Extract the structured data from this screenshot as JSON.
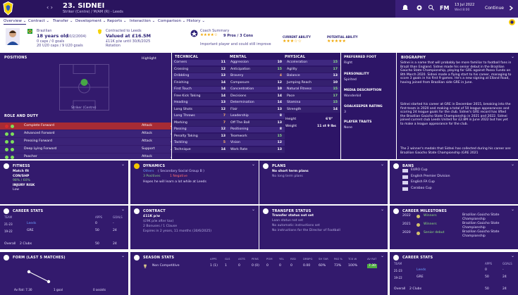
{
  "header": {
    "player_title": "23. SIDNEI",
    "player_subtitle": "Striker (Centre) / M/AM (R) - Leeds",
    "date": "13 Jul 2022",
    "day": "Wed 8:00",
    "fm_label": "FM",
    "continue_label": "Continue"
  },
  "nav": [
    {
      "label": "Overview ⌄",
      "active": true
    },
    {
      "label": "Contract ⌄"
    },
    {
      "label": "Transfer ⌄"
    },
    {
      "label": "Development ⌄"
    },
    {
      "label": "Reports ⌄"
    },
    {
      "label": "Interaction ⌄"
    },
    {
      "label": "Comparison ⌄"
    },
    {
      "label": "History ⌄"
    }
  ],
  "profile": {
    "nationality": "Brazilian",
    "age": "18 years old",
    "dob": "(10/2/2004)",
    "caps": "0 caps / 0 goals",
    "u20_caps": "20 U20 caps / 9 U20 goals",
    "contract_title": "Contracted to Leeds",
    "value": "Valued at £16.5M",
    "wage": "£11K p/w until 30/6/2025",
    "squad_status": "Rotation",
    "coach_title": "Coach Summary",
    "coach_summary": "9 Pros / 3 Cons",
    "coach_comment": "Important player and could still improve",
    "current_ability_label": "CURRENT ABILITY",
    "potential_ability_label": "POTENTIAL ABILITY",
    "current_stars": 2.5,
    "potential_stars": 4.5
  },
  "positions": {
    "title": "POSITIONS",
    "highlight_label": "Highlight",
    "position_label": "Striker (Centre)"
  },
  "roles": {
    "title": "ROLE AND DUTY",
    "items": [
      {
        "name": "Complete Forward",
        "duty": "Attack",
        "dots": [
          "#d72b2b",
          "#7ddf5b"
        ],
        "selected": true
      },
      {
        "name": "Advanced Forward",
        "duty": "Attack",
        "dots": [
          "#7ddf5b",
          "#7ddf5b"
        ]
      },
      {
        "name": "Pressing Forward",
        "duty": "Attack",
        "dots": [
          "#7ddf5b",
          "#7ddf5b"
        ]
      },
      {
        "name": "Deep Lying Forward",
        "duty": "Support",
        "dots": [
          "#7ddf5b",
          "#7ddf5b"
        ]
      },
      {
        "name": "Poacher",
        "duty": "Attack",
        "dots": [
          "#7ddf5b",
          "#7ddf5b"
        ]
      }
    ]
  },
  "attributes": {
    "technical_title": "TECHNICAL",
    "mental_title": "MENTAL",
    "physical_title": "PHYSICAL",
    "technical": [
      [
        "Corners",
        "11"
      ],
      [
        "Crossing",
        "12"
      ],
      [
        "Dribbling",
        "13"
      ],
      [
        "Finishing",
        "14"
      ],
      [
        "First Touch",
        "14"
      ],
      [
        "Free Kick Taking",
        "14"
      ],
      [
        "Heading",
        "13"
      ],
      [
        "Long Shots",
        "12"
      ],
      [
        "Long Throws",
        "7"
      ],
      [
        "Marking",
        "7"
      ],
      [
        "Passing",
        "12"
      ],
      [
        "Penalty Taking",
        "13"
      ],
      [
        "Tackling",
        "5"
      ],
      [
        "Technique",
        "14"
      ]
    ],
    "mental": [
      [
        "Aggression",
        "10"
      ],
      [
        "Anticipation",
        "15"
      ],
      [
        "Bravery",
        "4"
      ],
      [
        "Composure",
        "12"
      ],
      [
        "Concentration",
        "10"
      ],
      [
        "Decisions",
        "14"
      ],
      [
        "Determination",
        "14"
      ],
      [
        "Flair",
        "13"
      ],
      [
        "Leadership",
        "8"
      ],
      [
        "Off The Ball",
        "13"
      ],
      [
        "Positioning",
        "8"
      ],
      [
        "Teamwork",
        "15"
      ],
      [
        "Vision",
        "12"
      ],
      [
        "Work Rate",
        "13"
      ]
    ],
    "physical": [
      [
        "Acceleration",
        "15"
      ],
      [
        "Agility",
        "17"
      ],
      [
        "Balance",
        "13"
      ],
      [
        "Jumping Reach",
        "10"
      ],
      [
        "Natural Fitness",
        "15"
      ],
      [
        "Pace",
        "17"
      ],
      [
        "Stamina",
        "15"
      ],
      [
        "Strength",
        "14"
      ]
    ],
    "height_label": "Height",
    "height_value": "6'0\"",
    "weight_label": "Weight",
    "weight_value": "11 st 9 lbs"
  },
  "side": {
    "preferred_foot_label": "PREFERRED FOOT",
    "preferred_foot": "Right",
    "personality_label": "PERSONALITY",
    "personality": "Spirited",
    "media_label": "MEDIA DESCRIPTION",
    "media": "Wonderkid",
    "gk_label": "GOALKEEPER RATING",
    "gk_value": "3",
    "traits_label": "PLAYER TRAITS",
    "traits": "None"
  },
  "biography": {
    "title": "BIOGRAPHY",
    "para1": "Sidnei is a name that will probably be more familiar to football fans in Brazil than England. Sidnei made his senior debut in the Brazilian Gaúcho State Championship, playing for GRE against Passo Fundo on 8th March 2020. Sidnei made a flying start to his career, managing to score 3 goals in his first 9 games. He's a new signing at Elland Road, having joined from Brazilian side GRE in June.",
    "para2": "Sidnei started his career at GRE in December 2015, breaking into the first-team in 2020 and making a total of 50 league appearances and scoring 24 league goals for the club. Sidnei's GRE record has lifted the Brazilian Gaúcho State Championship in 2021 and 2022. Sidnei joined current club Leeds United for £2.8M in June 2022 but has yet to make a league appearance for the club.",
    "para3": "The 2 winner's medals that Sidnei has collected during his career are: Brazilian Gaúcho State Championship (GRE 2021"
  },
  "fitness": {
    "title": "FITNESS",
    "status": "Match fit",
    "condition_label": "CON/SHP",
    "condition": "98% / 60%",
    "injury_label": "INJURY RISK",
    "injury": "Low"
  },
  "dynamics": {
    "title": "DYNAMICS",
    "group": "Others",
    "group_sub": "( Secondary Social Group B )",
    "positive": "3 Positives",
    "negative": "1 Negative",
    "hope": "Hopes he will learn a lot while at Leeds"
  },
  "plans": {
    "title": "PLANS",
    "headline": "No short term plans",
    "sub": "No long term plans"
  },
  "bans": {
    "title": "BANS",
    "items": [
      "EURO Cup",
      "English Premier Division",
      "English FA Cup",
      "Carabao Cup"
    ]
  },
  "career_stats": {
    "title": "CAREER STATS",
    "team_label": "TEAM",
    "apps_label": "APPS",
    "goals_label": "GOALS",
    "rows": [
      [
        "21-23",
        "Leeds",
        "0",
        "-"
      ],
      [
        "19-22",
        "GRE",
        "50",
        "24"
      ]
    ],
    "overall_label": "Overall",
    "overall_clubs": "2 Clubs",
    "overall_apps": "50",
    "overall_goals": "24"
  },
  "contract": {
    "title": "CONTRACT",
    "wage": "£11K p/w",
    "wage_note": "(£9K p/w after tax)",
    "bonus": "2 Bonuses / 1 Clause",
    "expiry": "Expires in 2 years, 11 months (30/6/2025)"
  },
  "transfer": {
    "title": "TRANSFER STATUS",
    "status": "Transfer status not set",
    "loan": "Loan status not set",
    "instruction1": "No automatic instructions set",
    "instruction2": "No instructions for the Director of Football"
  },
  "milestones": {
    "title": "CAREER MILESTONES",
    "rows": [
      [
        "2022",
        "Winners",
        "Brazilian Gaúcho State Championship"
      ],
      [
        "2021",
        "Winners",
        "Brazilian Gaúcho State Championship"
      ],
      [
        "2020",
        "Senior debut",
        "Brazilian Gaúcho State Championship"
      ]
    ]
  },
  "form": {
    "title": "FORM (LAST 5 MATCHES)",
    "avg_label": "Av Rat: 7.30",
    "goals_label": "1 goal",
    "assists_label": "0 assists"
  },
  "season_stats": {
    "title": "SEASON STATS",
    "headers": [
      "APPS",
      "GLS",
      "ASTS",
      "PENS",
      "POM",
      "YEL",
      "RED",
      "DRBPG",
      "SH TAR",
      "PAS %",
      "TCK W",
      "AV RAT"
    ],
    "row_label": "Non Competitive",
    "values": [
      "1 (1)",
      "1",
      "0",
      "0 (0)",
      "0",
      "0",
      "0",
      "0.00",
      "60%",
      "73%",
      "100%",
      "7.30"
    ]
  },
  "career_stats_2": {
    "title": "CAREER STATS",
    "team_label": "TEAM",
    "apps_label": "APPS",
    "goals_label": "GOALS",
    "rows": [
      [
        "21-23",
        "Leeds",
        "0",
        "-"
      ],
      [
        "19-22",
        "GRE",
        "50",
        "24"
      ]
    ],
    "overall_label": "Overall",
    "overall_clubs": "2 Clubs",
    "overall_apps": "50",
    "overall_goals": "24"
  },
  "icons": {
    "club_badge": "club-badge-icon",
    "search": "search-icon",
    "settings": "gear-icon",
    "arrow": "chevron-right-icon"
  }
}
